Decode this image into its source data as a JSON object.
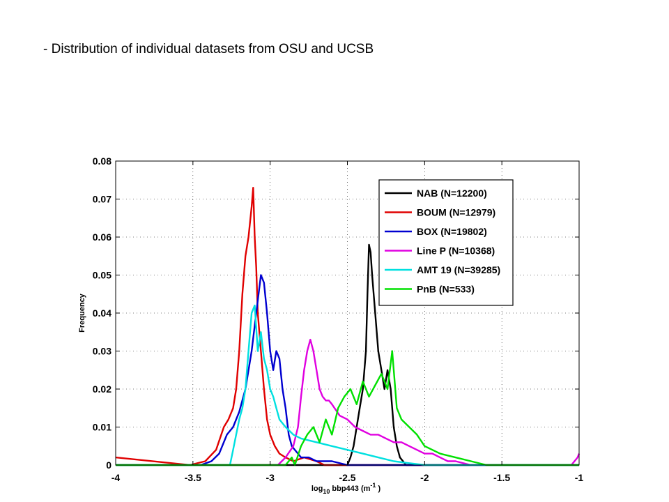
{
  "slide": {
    "title": "- Distribution of individual datasets from OSU and UCSB"
  },
  "chart_data": {
    "type": "line",
    "title": "",
    "xlabel": "log10 bbp443 (m-1 )",
    "xlabel_parts": {
      "main": "log",
      "sub": "10",
      "mid": " bbp443 (m",
      "sup": "-1",
      "end": " )"
    },
    "ylabel": "Frequency",
    "xlim": [
      -4,
      -1
    ],
    "ylim": [
      0,
      0.08
    ],
    "xticks": [
      -4,
      -3.5,
      -3,
      -2.5,
      -2,
      -1.5,
      -1
    ],
    "xtick_labels": [
      "-4",
      "-3.5",
      "-3",
      "-2.5",
      "-2",
      "-1.5",
      "-1"
    ],
    "yticks": [
      0,
      0.01,
      0.02,
      0.03,
      0.04,
      0.05,
      0.06,
      0.07,
      0.08
    ],
    "ytick_labels": [
      "0",
      "0.01",
      "0.02",
      "0.03",
      "0.04",
      "0.05",
      "0.06",
      "0.07",
      "0.08"
    ],
    "grid": true,
    "legend_position": "top-right",
    "series": [
      {
        "name": "NAB (N=12200)",
        "color": "#000000",
        "x": [
          -4,
          -2.5,
          -2.48,
          -2.46,
          -2.44,
          -2.42,
          -2.4,
          -2.38,
          -2.37,
          -2.36,
          -2.35,
          -2.34,
          -2.33,
          -2.32,
          -2.31,
          -2.3,
          -2.28,
          -2.26,
          -2.24,
          -2.22,
          -2.2,
          -2.18,
          -2.16,
          -2.14,
          -2.12,
          -1
        ],
        "y": [
          0,
          0,
          0.002,
          0.005,
          0.01,
          0.015,
          0.02,
          0.03,
          0.045,
          0.058,
          0.056,
          0.05,
          0.045,
          0.04,
          0.035,
          0.03,
          0.025,
          0.02,
          0.025,
          0.02,
          0.01,
          0.005,
          0.002,
          0.001,
          0,
          0
        ]
      },
      {
        "name": "BOUM (N=12979)",
        "color": "#e00000",
        "x": [
          -4,
          -3.52,
          -3.42,
          -3.35,
          -3.3,
          -3.27,
          -3.24,
          -3.22,
          -3.2,
          -3.18,
          -3.16,
          -3.14,
          -3.12,
          -3.11,
          -3.1,
          -3.09,
          -3.08,
          -3.06,
          -3.04,
          -3.02,
          -3.0,
          -2.97,
          -2.94,
          -2.9,
          -2.85,
          -2.78,
          -2.7,
          -2.65,
          -1
        ],
        "y": [
          0.002,
          0,
          0.001,
          0.004,
          0.01,
          0.012,
          0.015,
          0.02,
          0.03,
          0.045,
          0.055,
          0.06,
          0.068,
          0.073,
          0.06,
          0.052,
          0.04,
          0.03,
          0.02,
          0.012,
          0.008,
          0.005,
          0.003,
          0.002,
          0.001,
          0.002,
          0.001,
          0,
          0
        ]
      },
      {
        "name": "BOX (N=19802)",
        "color": "#0000d0",
        "x": [
          -4,
          -3.45,
          -3.38,
          -3.33,
          -3.28,
          -3.24,
          -3.2,
          -3.16,
          -3.12,
          -3.09,
          -3.06,
          -3.04,
          -3.02,
          -3.0,
          -2.98,
          -2.96,
          -2.94,
          -2.92,
          -2.9,
          -2.88,
          -2.86,
          -2.84,
          -2.82,
          -2.8,
          -2.75,
          -2.7,
          -2.6,
          -2.5,
          -1
        ],
        "y": [
          0,
          0,
          0.001,
          0.003,
          0.008,
          0.01,
          0.014,
          0.02,
          0.03,
          0.04,
          0.05,
          0.048,
          0.04,
          0.03,
          0.025,
          0.03,
          0.028,
          0.02,
          0.015,
          0.008,
          0.005,
          0.004,
          0.003,
          0.002,
          0.002,
          0.001,
          0.001,
          0,
          0
        ]
      },
      {
        "name": "Line P (N=10368)",
        "color": "#e000e0",
        "x": [
          -4,
          -2.95,
          -2.9,
          -2.85,
          -2.82,
          -2.8,
          -2.78,
          -2.76,
          -2.74,
          -2.72,
          -2.7,
          -2.68,
          -2.66,
          -2.64,
          -2.62,
          -2.6,
          -2.55,
          -2.5,
          -2.45,
          -2.4,
          -2.35,
          -2.3,
          -2.25,
          -2.2,
          -2.15,
          -2.1,
          -2.0,
          -1.95,
          -1.9,
          -1.85,
          -1.8,
          -1.7,
          -1.6,
          -1.5,
          -1.4,
          -1.3,
          -1.05,
          -1.01,
          -1.0
        ],
        "y": [
          0,
          0,
          0.002,
          0.005,
          0.01,
          0.018,
          0.025,
          0.03,
          0.033,
          0.03,
          0.025,
          0.02,
          0.018,
          0.017,
          0.017,
          0.016,
          0.013,
          0.012,
          0.01,
          0.009,
          0.008,
          0.008,
          0.007,
          0.006,
          0.006,
          0.005,
          0.003,
          0.003,
          0.002,
          0.001,
          0.001,
          0,
          0,
          0,
          0,
          0,
          0,
          0.002,
          0.003
        ]
      },
      {
        "name": "AMT 19 (N=39285)",
        "color": "#00e0e0",
        "x": [
          -4,
          -3.26,
          -3.24,
          -3.22,
          -3.2,
          -3.18,
          -3.16,
          -3.14,
          -3.12,
          -3.1,
          -3.08,
          -3.06,
          -3.04,
          -3.02,
          -3.0,
          -2.98,
          -2.96,
          -2.94,
          -2.9,
          -2.85,
          -2.8,
          -2.7,
          -2.6,
          -2.5,
          -2.4,
          -2.3,
          -2.2,
          -2.1,
          -2.0,
          -1
        ],
        "y": [
          0,
          0,
          0.004,
          0.008,
          0.012,
          0.015,
          0.02,
          0.03,
          0.04,
          0.042,
          0.03,
          0.035,
          0.028,
          0.025,
          0.02,
          0.018,
          0.015,
          0.012,
          0.01,
          0.008,
          0.007,
          0.006,
          0.005,
          0.004,
          0.003,
          0.002,
          0.001,
          0.0005,
          0,
          0
        ]
      },
      {
        "name": "PnB (N=533)",
        "color": "#00e000",
        "x": [
          -4,
          -2.9,
          -2.86,
          -2.84,
          -2.8,
          -2.76,
          -2.72,
          -2.68,
          -2.64,
          -2.6,
          -2.56,
          -2.52,
          -2.48,
          -2.44,
          -2.4,
          -2.36,
          -2.32,
          -2.28,
          -2.24,
          -2.21,
          -2.2,
          -2.18,
          -2.15,
          -2.1,
          -2.05,
          -2.0,
          -1.95,
          -1.9,
          -1.8,
          -1.7,
          -1.6,
          -1
        ],
        "y": [
          0,
          0,
          0.002,
          0,
          0.005,
          0.008,
          0.01,
          0.006,
          0.012,
          0.008,
          0.015,
          0.018,
          0.02,
          0.016,
          0.022,
          0.018,
          0.021,
          0.024,
          0.02,
          0.03,
          0.025,
          0.015,
          0.012,
          0.01,
          0.008,
          0.005,
          0.004,
          0.003,
          0.002,
          0.001,
          0,
          0
        ]
      }
    ]
  }
}
